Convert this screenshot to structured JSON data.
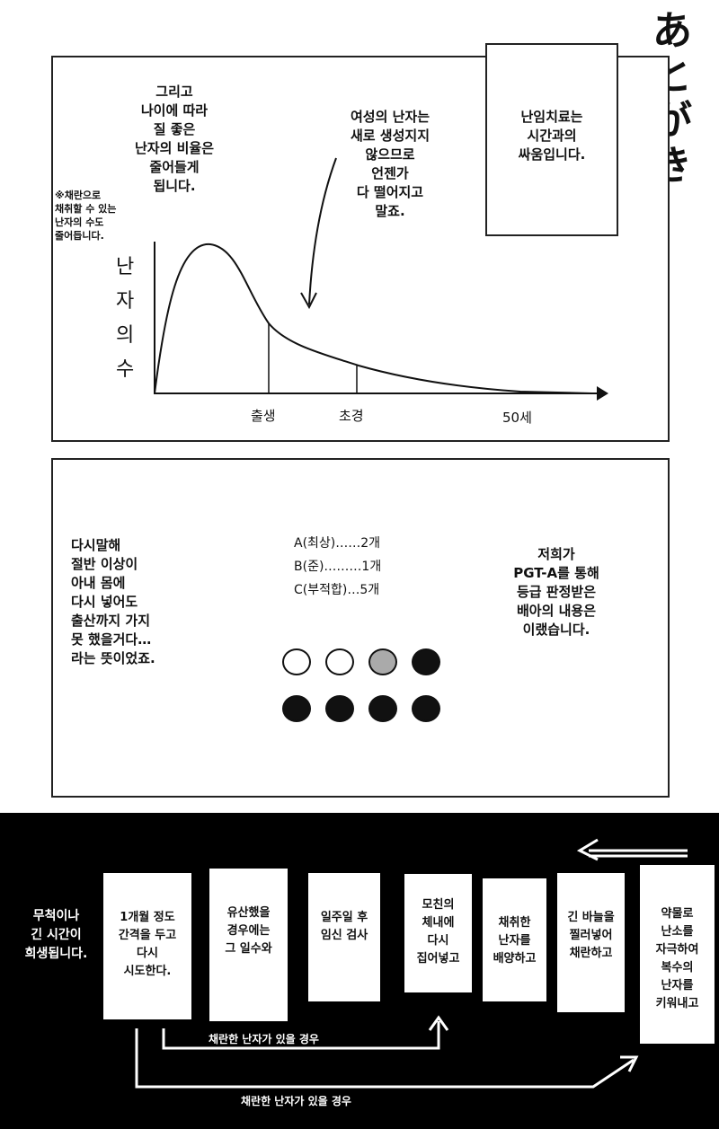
{
  "title": "あとがき",
  "panel1": {
    "text_left": "그리고\n나이에 따라\n질 좋은\n난자의 비율은\n줄어들게\n됩니다.",
    "note": "※채란으로\n채취할 수 있는\n난자의 수도\n줄어듭니다.",
    "text_right": "여성의 난자는\n새로 생성지지\n않으므로\n언젠가\n다 떨어지고\n말죠.",
    "box_text": "난임치료는\n시간과의\n싸움입니다.",
    "chart": {
      "y_label": "난자의 수",
      "x_ticks": [
        "출생",
        "초경",
        "50세"
      ]
    }
  },
  "panel2": {
    "left_text": "다시말해\n절반 이상이\n아내 몸에\n다시 넣어도\n출산까지 가지\n못 했을거다…\n라는 뜻이었죠.",
    "grades": [
      "A(최상)……2개",
      "B(준)………1개",
      "C(부적합)…5개"
    ],
    "right_text": "저희가\nPGT-A를 통해\n등급 판정받은\n배아의 내용은\n이랬습니다.",
    "embryos": [
      "A",
      "A",
      "B",
      "C",
      "C",
      "C",
      "C",
      "C"
    ],
    "colors": {
      "A": "#ffffff",
      "B": "#aaaaaa",
      "C": "#111111"
    }
  },
  "band": {
    "left_text": "무척이나\n긴 시간이\n희생됩니다.",
    "steps": [
      "1개월 정도\n간격을 두고\n다시\n시도한다.",
      "유산했을\n경우에는\n그 일수와",
      "일주일 후\n임신 검사",
      "모친의\n체내에\n다시\n집어넣고",
      "채취한\n난자를\n배양하고",
      "긴 바늘을\n찔러넣어\n채란하고",
      "약물로\n난소를\n자극하여\n복수의\n난자를\n키워내고"
    ],
    "arrow_label_1": "채란한 난자가 있을 경우",
    "arrow_label_2": "채란한 난자가 있을 경우"
  }
}
